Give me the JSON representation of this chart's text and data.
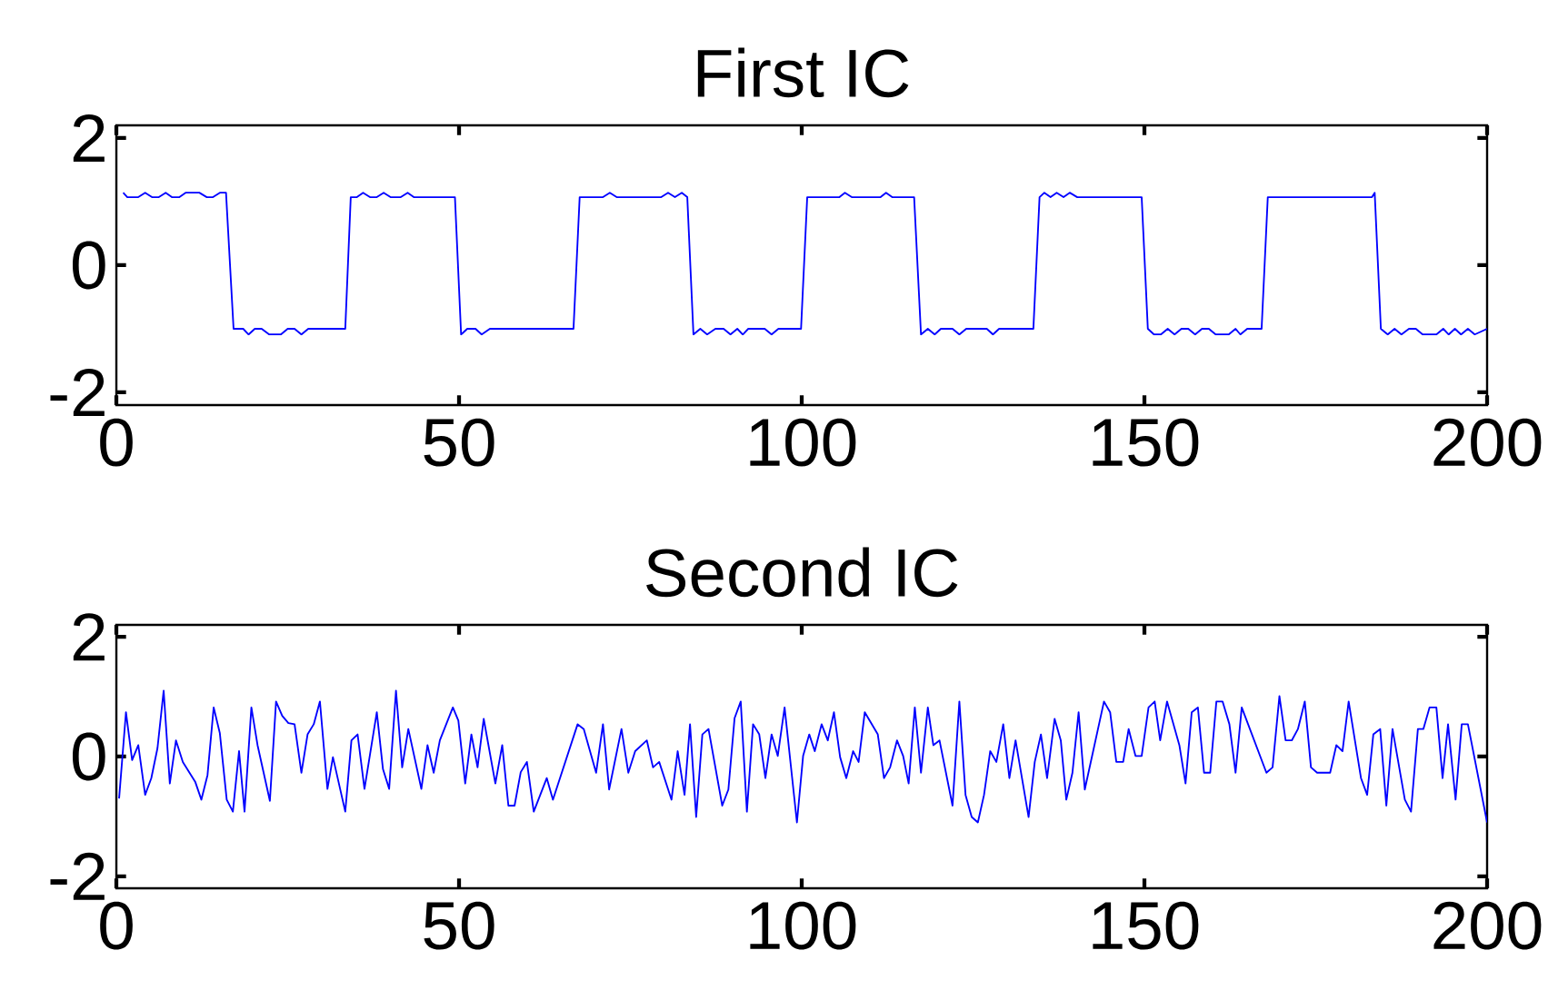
{
  "chart_data": [
    {
      "type": "line",
      "title": "First IC",
      "xlim": [
        0,
        200
      ],
      "ylim": [
        -2.2,
        2.2
      ],
      "xticks": [
        0,
        50,
        100,
        150,
        200
      ],
      "yticks": [
        -2,
        0,
        2
      ],
      "series": [
        {
          "color": "#0000ff",
          "x": [
            1,
            1.6,
            3.2,
            4.2,
            5.2,
            6.2,
            7.2,
            8.1,
            9.2,
            10.1,
            12.1,
            13.2,
            14.1,
            15.1,
            16.0,
            17.1,
            18.5,
            19.3,
            20.2,
            21.2,
            22.3,
            24.0,
            25.0,
            26.0,
            27.0,
            28.0,
            33.4,
            34.2,
            35.1,
            36.0,
            37.0,
            38.0,
            39.0,
            40.0,
            41.5,
            42.5,
            43.4,
            49.4,
            50.3,
            51.2,
            52.4,
            53.3,
            54.5,
            66.7,
            67.6,
            71.0,
            72.0,
            73.0,
            79.5,
            80.5,
            81.5,
            82.5,
            83.3,
            84.2,
            85.2,
            86.2,
            87.4,
            88.6,
            89.6,
            90.6,
            91.4,
            92.2,
            94.6,
            95.6,
            96.6,
            99.9,
            100.8,
            105.5,
            106.3,
            107.3,
            111.5,
            112.3,
            113.2,
            116.4,
            117.4,
            118.4,
            119.4,
            120.3,
            122.0,
            123.0,
            124.0,
            127.0,
            127.9,
            128.8,
            133.8,
            134.7,
            135.4,
            136.3,
            137.2,
            138.2,
            139.1,
            140.2,
            149.6,
            150.5,
            151.4,
            152.4,
            153.4,
            154.4,
            155.4,
            156.4,
            157.4,
            158.4,
            159.4,
            160.4,
            162.3,
            163.3,
            164.0,
            165.0,
            167.1,
            168.0,
            183.2,
            183.6,
            184.5,
            185.5,
            186.5,
            187.5,
            188.6,
            189.6,
            190.6,
            192.6,
            193.6,
            194.4,
            195.3,
            196.2,
            197.2,
            198.2,
            200
          ],
          "values": [
            1.14,
            1.07,
            1.07,
            1.14,
            1.07,
            1.07,
            1.14,
            1.07,
            1.07,
            1.14,
            1.14,
            1.07,
            1.07,
            1.14,
            1.14,
            -1.0,
            -1.0,
            -1.09,
            -1.0,
            -1.0,
            -1.09,
            -1.09,
            -1.0,
            -1.0,
            -1.09,
            -1.0,
            -1.0,
            1.07,
            1.07,
            1.14,
            1.07,
            1.07,
            1.14,
            1.07,
            1.07,
            1.14,
            1.07,
            1.07,
            -1.09,
            -1.0,
            -1.0,
            -1.09,
            -1.0,
            -1.0,
            1.07,
            1.07,
            1.14,
            1.07,
            1.07,
            1.14,
            1.07,
            1.14,
            1.07,
            -1.09,
            -1.0,
            -1.09,
            -1.0,
            -1.0,
            -1.09,
            -1.0,
            -1.09,
            -1.0,
            -1.0,
            -1.09,
            -1.0,
            -1.0,
            1.07,
            1.07,
            1.14,
            1.07,
            1.07,
            1.14,
            1.07,
            1.07,
            -1.09,
            -1.0,
            -1.09,
            -1.0,
            -1.0,
            -1.09,
            -1.0,
            -1.0,
            -1.09,
            -1.0,
            -1.0,
            1.07,
            1.14,
            1.07,
            1.14,
            1.07,
            1.14,
            1.07,
            1.07,
            -1.0,
            -1.09,
            -1.09,
            -1.0,
            -1.09,
            -1.0,
            -1.0,
            -1.09,
            -1.0,
            -1.0,
            -1.09,
            -1.09,
            -1.0,
            -1.09,
            -1.0,
            -1.0,
            1.07,
            1.07,
            1.14,
            -1.0,
            -1.09,
            -1.0,
            -1.09,
            -1.0,
            -1.0,
            -1.09,
            -1.09,
            -1.0,
            -1.09,
            -1.0,
            -1.09,
            -1.0,
            -1.09,
            -1.0
          ]
        }
      ]
    },
    {
      "type": "line",
      "title": "Second IC",
      "xlim": [
        0,
        200
      ],
      "ylim": [
        -2.2,
        2.2
      ],
      "xticks": [
        0,
        50,
        100,
        150,
        200
      ],
      "yticks": [
        -2,
        0,
        2
      ],
      "series": [
        {
          "color": "#0000ff",
          "x": [
            0.4,
            1.4,
            2.3,
            3.2,
            4.2,
            5.1,
            6.0,
            6.9,
            7.8,
            8.7,
            9.7,
            11.5,
            12.4,
            13.3,
            14.2,
            15.1,
            16.1,
            17.0,
            17.9,
            18.7,
            19.7,
            20.6,
            22.4,
            23.3,
            24.2,
            25.1,
            26.0,
            27.0,
            27.9,
            28.8,
            29.7,
            30.8,
            31.6,
            33.4,
            34.3,
            35.2,
            36.2,
            38.0,
            38.9,
            39.8,
            40.8,
            41.7,
            42.6,
            44.5,
            45.4,
            46.3,
            47.2,
            49.1,
            49.9,
            50.9,
            51.8,
            52.7,
            53.6,
            55.3,
            56.3,
            57.2,
            58.1,
            59.0,
            59.9,
            60.9,
            62.8,
            63.7,
            67.3,
            68.2,
            70.0,
            71.0,
            71.9,
            73.7,
            74.7,
            75.7,
            77.4,
            78.3,
            79.2,
            81.0,
            81.9,
            82.9,
            83.7,
            84.6,
            85.5,
            86.4,
            88.4,
            89.3,
            90.2,
            91.1,
            92.0,
            92.9,
            93.8,
            94.7,
            95.6,
            96.5,
            97.5,
            99.3,
            100.2,
            101.1,
            101.9,
            102.9,
            103.8,
            104.7,
            105.6,
            106.5,
            107.5,
            108.3,
            109.2,
            111.1,
            112.0,
            112.9,
            113.9,
            114.8,
            115.6,
            116.5,
            117.4,
            118.4,
            119.2,
            120.1,
            122.0,
            123.0,
            123.9,
            124.8,
            125.7,
            126.6,
            127.5,
            128.4,
            129.4,
            130.3,
            131.2,
            133.1,
            134.0,
            134.9,
            135.8,
            136.9,
            137.8,
            138.6,
            139.5,
            140.4,
            141.3,
            144.1,
            145.0,
            145.9,
            146.9,
            147.7,
            148.7,
            149.6,
            150.6,
            151.5,
            152.3,
            153.3,
            155.1,
            156.0,
            156.9,
            157.8,
            158.7,
            159.6,
            160.5,
            161.4,
            162.4,
            163.3,
            164.2,
            167.8,
            168.7,
            169.7,
            170.6,
            171.5,
            172.4,
            173.4,
            174.3,
            175.2,
            177.1,
            178.0,
            178.9,
            179.8,
            181.6,
            182.5,
            183.4,
            184.4,
            185.3,
            186.2,
            188.0,
            188.9,
            189.9,
            190.7,
            191.6,
            192.6,
            193.5,
            194.3,
            195.4,
            196.3,
            197.2,
            200
          ],
          "values": [
            -0.7,
            0.74,
            -0.06,
            0.19,
            -0.64,
            -0.36,
            0.14,
            1.1,
            -0.45,
            0.27,
            -0.09,
            -0.42,
            -0.72,
            -0.31,
            0.82,
            0.39,
            -0.72,
            -0.92,
            0.09,
            -0.92,
            0.82,
            0.19,
            -0.74,
            0.92,
            0.68,
            0.56,
            0.54,
            -0.27,
            0.37,
            0.54,
            0.92,
            -0.54,
            -0.01,
            -0.92,
            0.27,
            0.37,
            -0.54,
            0.74,
            -0.21,
            -0.54,
            1.1,
            -0.18,
            0.46,
            -0.54,
            0.19,
            -0.27,
            0.27,
            0.82,
            0.6,
            -0.45,
            0.37,
            -0.18,
            0.63,
            -0.45,
            0.19,
            -0.82,
            -0.82,
            -0.26,
            -0.09,
            -0.92,
            -0.36,
            -0.72,
            0.54,
            0.46,
            -0.27,
            0.54,
            -0.55,
            0.46,
            -0.27,
            0.09,
            0.27,
            -0.18,
            -0.09,
            -0.72,
            0.09,
            -0.64,
            0.54,
            -1.01,
            0.37,
            0.46,
            -0.82,
            -0.55,
            0.64,
            0.92,
            -0.92,
            0.54,
            0.37,
            -0.36,
            0.37,
            0.01,
            0.82,
            -1.1,
            0.01,
            0.37,
            0.09,
            0.54,
            0.27,
            0.74,
            -0.01,
            -0.36,
            0.09,
            -0.09,
            0.74,
            0.37,
            -0.36,
            -0.18,
            0.27,
            0.01,
            -0.45,
            0.82,
            -0.27,
            0.82,
            0.19,
            0.27,
            -0.82,
            0.92,
            -0.64,
            -1.01,
            -1.1,
            -0.64,
            0.09,
            -0.09,
            0.54,
            -0.36,
            0.27,
            -1.01,
            -0.09,
            0.37,
            -0.36,
            0.63,
            0.27,
            -0.72,
            -0.27,
            0.74,
            -0.55,
            0.92,
            0.74,
            -0.09,
            -0.09,
            0.46,
            0.01,
            0.01,
            0.82,
            0.92,
            0.27,
            0.92,
            0.19,
            -0.45,
            0.74,
            0.82,
            -0.27,
            -0.27,
            0.92,
            0.92,
            0.54,
            -0.27,
            0.82,
            -0.27,
            -0.18,
            1.01,
            0.27,
            0.27,
            0.46,
            0.92,
            -0.18,
            -0.27,
            -0.27,
            0.19,
            0.09,
            0.92,
            -0.36,
            -0.64,
            0.37,
            0.46,
            -0.82,
            0.46,
            -0.72,
            -0.92,
            0.46,
            0.46,
            0.82,
            0.82,
            -0.36,
            0.54,
            -0.72,
            0.54,
            0.54,
            -1.1
          ]
        }
      ]
    }
  ]
}
